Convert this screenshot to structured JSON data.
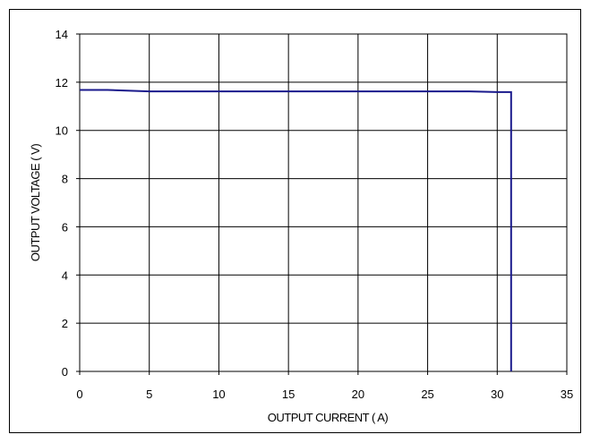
{
  "chart_data": {
    "type": "line",
    "title": "",
    "xlabel": "OUTPUT CURRENT ( A)",
    "ylabel": "OUTPUT VOLTAGE ( V)",
    "xlim": [
      0,
      35
    ],
    "ylim": [
      0,
      14
    ],
    "xticks": [
      "0",
      "5",
      "10",
      "15",
      "20",
      "25",
      "30",
      "35"
    ],
    "yticks": [
      "0",
      "2",
      "4",
      "6",
      "8",
      "10",
      "12",
      "14"
    ],
    "grid": true,
    "legend": "none",
    "series": [
      {
        "color": "#1a1a8c",
        "points": [
          [
            0,
            11.68
          ],
          [
            2,
            11.68
          ],
          [
            5,
            11.62
          ],
          [
            10,
            11.62
          ],
          [
            20,
            11.62
          ],
          [
            28,
            11.62
          ],
          [
            30,
            11.59
          ],
          [
            31,
            11.59
          ],
          [
            31,
            0
          ]
        ]
      }
    ]
  }
}
